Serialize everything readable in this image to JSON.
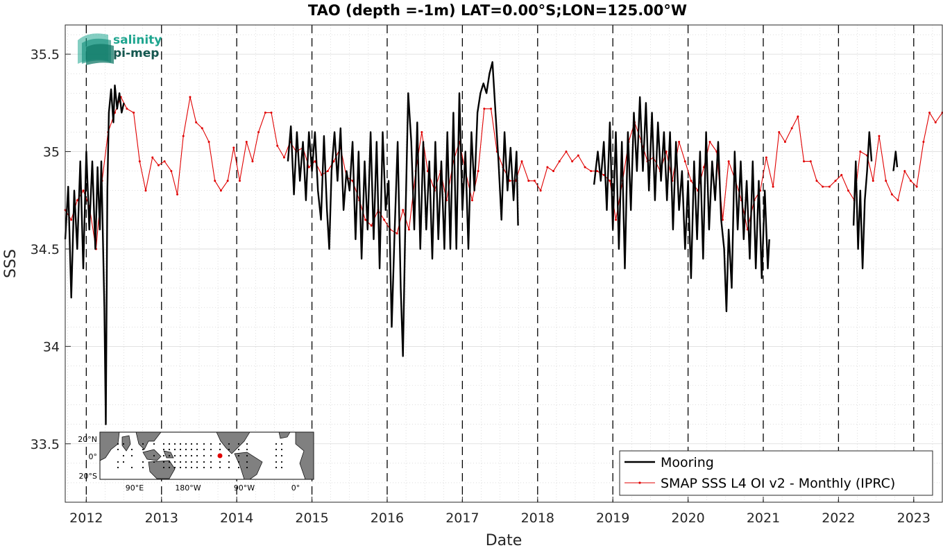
{
  "chart_data": {
    "type": "line",
    "title": "TAO (depth =-1m) LAT=0.00°S;LON=125.00°W",
    "xlabel": "Date",
    "ylabel": "SSS",
    "xlim": [
      2011.72,
      2023.38
    ],
    "ylim": [
      33.2,
      35.65
    ],
    "x_ticks": [
      "2012",
      "2013",
      "2014",
      "2015",
      "2016",
      "2017",
      "2018",
      "2019",
      "2020",
      "2021",
      "2022",
      "2023"
    ],
    "y_ticks": [
      "33.5",
      "34",
      "34.5",
      "35",
      "35.5"
    ],
    "grid": true,
    "year_lines": "dashed vertical line at each January 1",
    "legend_position": "bottom-right",
    "logo": {
      "line1": "salinity",
      "line2": "pi-mep"
    },
    "inset_map": {
      "lat_labels": [
        "20°N",
        "0°",
        "20°S"
      ],
      "lon_labels": [
        "90°E",
        "180°W",
        "90°W",
        "0°"
      ],
      "mooring_marker_color": "#e00000"
    },
    "colors": {
      "mooring": "#000000",
      "smap": "#e00000",
      "grid": "#d9d9d9"
    },
    "series": [
      {
        "name": "Mooring",
        "style": "thick black line, high-frequency daily variability",
        "segments": [
          [
            [
              2011.72,
              34.55
            ],
            [
              2011.76,
              34.82
            ],
            [
              2011.8,
              34.25
            ],
            [
              2011.84,
              34.8
            ],
            [
              2011.88,
              34.5
            ],
            [
              2011.92,
              34.95
            ],
            [
              2011.96,
              34.4
            ],
            [
              2012.0,
              35.0
            ],
            [
              2012.04,
              34.6
            ],
            [
              2012.08,
              34.95
            ],
            [
              2012.12,
              34.5
            ],
            [
              2012.15,
              34.92
            ],
            [
              2012.18,
              34.6
            ],
            [
              2012.2,
              34.95
            ],
            [
              2012.24,
              34.2
            ],
            [
              2012.26,
              33.6
            ],
            [
              2012.28,
              34.8
            ],
            [
              2012.3,
              35.2
            ],
            [
              2012.33,
              35.32
            ],
            [
              2012.36,
              35.15
            ],
            [
              2012.38,
              35.34
            ],
            [
              2012.41,
              35.22
            ],
            [
              2012.44,
              35.3
            ],
            [
              2012.47,
              35.2
            ],
            [
              2012.5,
              35.25
            ]
          ],
          [
            [
              2014.68,
              34.95
            ],
            [
              2014.72,
              35.13
            ],
            [
              2014.76,
              34.78
            ],
            [
              2014.8,
              35.1
            ],
            [
              2014.84,
              34.85
            ],
            [
              2014.88,
              35.05
            ],
            [
              2014.92,
              34.75
            ],
            [
              2014.96,
              35.1
            ],
            [
              2015.0,
              34.9
            ],
            [
              2015.04,
              35.1
            ],
            [
              2015.08,
              34.8
            ],
            [
              2015.12,
              34.65
            ],
            [
              2015.16,
              35.08
            ],
            [
              2015.2,
              34.7
            ],
            [
              2015.23,
              34.5
            ],
            [
              2015.26,
              34.9
            ],
            [
              2015.3,
              35.1
            ],
            [
              2015.34,
              34.85
            ],
            [
              2015.38,
              35.12
            ],
            [
              2015.42,
              34.7
            ],
            [
              2015.46,
              34.9
            ],
            [
              2015.5,
              34.8
            ],
            [
              2015.54,
              35.05
            ],
            [
              2015.58,
              34.55
            ],
            [
              2015.62,
              35.0
            ],
            [
              2015.66,
              34.45
            ],
            [
              2015.7,
              34.95
            ],
            [
              2015.74,
              34.6
            ],
            [
              2015.78,
              35.1
            ],
            [
              2015.82,
              34.55
            ],
            [
              2015.86,
              35.05
            ],
            [
              2015.9,
              34.4
            ],
            [
              2015.94,
              35.1
            ],
            [
              2015.98,
              34.7
            ],
            [
              2016.02,
              34.85
            ],
            [
              2016.06,
              34.1
            ],
            [
              2016.1,
              34.6
            ],
            [
              2016.14,
              35.05
            ],
            [
              2016.18,
              34.3
            ],
            [
              2016.21,
              33.95
            ],
            [
              2016.24,
              34.6
            ],
            [
              2016.28,
              35.3
            ],
            [
              2016.32,
              35.05
            ],
            [
              2016.36,
              34.6
            ],
            [
              2016.4,
              35.15
            ],
            [
              2016.44,
              34.5
            ],
            [
              2016.48,
              35.05
            ],
            [
              2016.52,
              34.6
            ],
            [
              2016.56,
              34.95
            ],
            [
              2016.6,
              34.45
            ],
            [
              2016.64,
              35.05
            ],
            [
              2016.68,
              34.55
            ],
            [
              2016.72,
              34.95
            ],
            [
              2016.76,
              34.5
            ],
            [
              2016.8,
              35.1
            ],
            [
              2016.84,
              34.5
            ],
            [
              2016.88,
              35.2
            ],
            [
              2016.92,
              34.5
            ],
            [
              2016.96,
              35.3
            ],
            [
              2017.0,
              34.7
            ],
            [
              2017.04,
              35.0
            ],
            [
              2017.08,
              34.5
            ],
            [
              2017.12,
              35.1
            ],
            [
              2017.16,
              34.8
            ],
            [
              2017.2,
              35.2
            ],
            [
              2017.24,
              35.3
            ],
            [
              2017.28,
              35.35
            ],
            [
              2017.32,
              35.3
            ],
            [
              2017.36,
              35.4
            ],
            [
              2017.4,
              35.46
            ],
            [
              2017.44,
              35.2
            ],
            [
              2017.48,
              34.95
            ],
            [
              2017.52,
              34.65
            ],
            [
              2017.56,
              35.1
            ],
            [
              2017.6,
              34.8
            ],
            [
              2017.64,
              35.02
            ],
            [
              2017.68,
              34.75
            ],
            [
              2017.72,
              35.0
            ],
            [
              2017.74,
              34.62
            ]
          ],
          [
            [
              2018.75,
              34.83
            ],
            [
              2018.8,
              35.0
            ],
            [
              2018.84,
              34.85
            ],
            [
              2018.88,
              35.05
            ],
            [
              2018.92,
              34.7
            ],
            [
              2018.96,
              35.15
            ],
            [
              2019.0,
              34.6
            ],
            [
              2019.04,
              35.1
            ],
            [
              2019.08,
              34.5
            ],
            [
              2019.12,
              35.05
            ],
            [
              2019.16,
              34.4
            ],
            [
              2019.2,
              35.1
            ],
            [
              2019.24,
              34.7
            ],
            [
              2019.28,
              35.2
            ],
            [
              2019.32,
              34.9
            ],
            [
              2019.36,
              35.28
            ],
            [
              2019.4,
              34.9
            ],
            [
              2019.44,
              35.25
            ],
            [
              2019.48,
              34.8
            ],
            [
              2019.52,
              35.2
            ],
            [
              2019.56,
              34.75
            ],
            [
              2019.6,
              35.15
            ],
            [
              2019.64,
              34.85
            ],
            [
              2019.68,
              35.1
            ],
            [
              2019.72,
              34.75
            ],
            [
              2019.76,
              35.1
            ],
            [
              2019.8,
              34.6
            ],
            [
              2019.84,
              35.05
            ],
            [
              2019.88,
              34.7
            ],
            [
              2019.92,
              34.9
            ],
            [
              2019.96,
              34.5
            ],
            [
              2020.0,
              34.85
            ],
            [
              2020.04,
              34.35
            ],
            [
              2020.08,
              34.95
            ],
            [
              2020.12,
              34.55
            ],
            [
              2020.16,
              35.0
            ],
            [
              2020.2,
              34.45
            ],
            [
              2020.24,
              35.1
            ],
            [
              2020.28,
              34.6
            ],
            [
              2020.32,
              34.95
            ],
            [
              2020.36,
              34.75
            ],
            [
              2020.4,
              35.05
            ],
            [
              2020.44,
              34.65
            ],
            [
              2020.48,
              34.5
            ],
            [
              2020.51,
              34.18
            ],
            [
              2020.54,
              34.6
            ],
            [
              2020.58,
              34.3
            ],
            [
              2020.62,
              35.0
            ],
            [
              2020.66,
              34.6
            ],
            [
              2020.7,
              34.95
            ],
            [
              2020.74,
              34.55
            ],
            [
              2020.78,
              34.85
            ],
            [
              2020.82,
              34.45
            ],
            [
              2020.86,
              34.95
            ],
            [
              2020.9,
              34.4
            ],
            [
              2020.94,
              34.85
            ],
            [
              2020.98,
              34.35
            ],
            [
              2021.02,
              34.8
            ],
            [
              2021.06,
              34.4
            ],
            [
              2021.08,
              34.55
            ]
          ],
          [
            [
              2022.2,
              34.62
            ],
            [
              2022.23,
              34.95
            ],
            [
              2022.26,
              34.5
            ],
            [
              2022.29,
              34.8
            ],
            [
              2022.32,
              34.4
            ],
            [
              2022.35,
              34.75
            ],
            [
              2022.38,
              34.9
            ],
            [
              2022.41,
              35.1
            ],
            [
              2022.44,
              34.95
            ]
          ],
          [
            [
              2022.73,
              34.9
            ],
            [
              2022.76,
              35.0
            ],
            [
              2022.78,
              34.92
            ]
          ]
        ]
      },
      {
        "name": "SMAP SSS L4 OI v2 - Monthly (IPRC)",
        "style": "thin red line with small dot markers",
        "x": [
          2011.72,
          2011.8,
          2011.88,
          2011.96,
          2012.04,
          2012.13,
          2012.21,
          2012.29,
          2012.38,
          2012.46,
          2012.54,
          2012.63,
          2012.71,
          2012.79,
          2012.88,
          2012.96,
          2013.04,
          2013.13,
          2013.21,
          2013.29,
          2013.38,
          2013.46,
          2013.54,
          2013.63,
          2013.71,
          2013.79,
          2013.88,
          2013.96,
          2014.04,
          2014.13,
          2014.21,
          2014.29,
          2014.38,
          2014.46,
          2014.54,
          2014.63,
          2014.71,
          2014.79,
          2014.88,
          2014.96,
          2015.04,
          2015.13,
          2015.21,
          2015.29,
          2015.38,
          2015.46,
          2015.54,
          2015.63,
          2015.71,
          2015.79,
          2015.88,
          2015.96,
          2016.04,
          2016.13,
          2016.21,
          2016.29,
          2016.38,
          2016.46,
          2016.54,
          2016.63,
          2016.71,
          2016.79,
          2016.88,
          2016.96,
          2017.04,
          2017.13,
          2017.21,
          2017.29,
          2017.38,
          2017.46,
          2017.54,
          2017.63,
          2017.71,
          2017.79,
          2017.88,
          2017.96,
          2018.04,
          2018.13,
          2018.21,
          2018.29,
          2018.38,
          2018.46,
          2018.54,
          2018.63,
          2018.71,
          2018.79,
          2018.88,
          2018.96,
          2019.04,
          2019.13,
          2019.21,
          2019.29,
          2019.38,
          2019.46,
          2019.54,
          2019.63,
          2019.71,
          2019.79,
          2019.88,
          2019.96,
          2020.04,
          2020.13,
          2020.21,
          2020.29,
          2020.38,
          2020.46,
          2020.54,
          2020.63,
          2020.71,
          2020.79,
          2020.88,
          2020.96,
          2021.04,
          2021.13,
          2021.21,
          2021.29,
          2021.38,
          2021.46,
          2021.54,
          2021.63,
          2021.71,
          2021.79,
          2021.88,
          2021.96,
          2022.04,
          2022.13,
          2022.21,
          2022.29,
          2022.38,
          2022.46,
          2022.54,
          2022.63,
          2022.71,
          2022.79,
          2022.88,
          2022.96,
          2023.04,
          2023.13,
          2023.21,
          2023.29,
          2023.38
        ],
        "y": [
          34.7,
          34.65,
          34.75,
          34.8,
          34.72,
          34.5,
          34.85,
          35.1,
          35.2,
          35.28,
          35.22,
          35.2,
          34.95,
          34.8,
          34.97,
          34.93,
          34.95,
          34.9,
          34.78,
          35.08,
          35.28,
          35.15,
          35.12,
          35.05,
          34.85,
          34.8,
          34.85,
          35.02,
          34.85,
          35.05,
          34.95,
          35.1,
          35.2,
          35.2,
          35.03,
          34.97,
          35.05,
          35.0,
          35.02,
          34.92,
          34.95,
          34.88,
          34.9,
          34.95,
          35.02,
          34.87,
          34.85,
          34.75,
          34.65,
          34.62,
          34.7,
          34.65,
          34.6,
          34.58,
          34.7,
          34.6,
          34.9,
          35.1,
          34.9,
          34.8,
          34.9,
          34.75,
          34.95,
          35.05,
          34.9,
          34.75,
          34.9,
          35.22,
          35.22,
          35.0,
          34.92,
          34.85,
          34.85,
          34.95,
          34.85,
          34.85,
          34.8,
          34.92,
          34.9,
          34.95,
          35.0,
          34.95,
          34.98,
          34.92,
          34.9,
          34.9,
          34.88,
          34.85,
          34.65,
          34.85,
          35.05,
          35.15,
          35.05,
          34.95,
          34.97,
          34.9,
          35.0,
          34.85,
          35.05,
          34.95,
          34.85,
          34.8,
          34.92,
          35.05,
          35.0,
          34.65,
          34.95,
          34.85,
          34.75,
          34.6,
          34.75,
          34.8,
          34.97,
          34.82,
          35.1,
          35.05,
          35.12,
          35.18,
          34.95,
          34.95,
          34.85,
          34.82,
          34.82,
          34.85,
          34.88,
          34.8,
          34.75,
          35.0,
          34.98,
          34.85,
          35.08,
          34.85,
          34.78,
          34.75,
          34.9,
          34.85,
          34.82,
          35.05,
          35.2,
          35.15,
          35.2
        ]
      }
    ]
  }
}
